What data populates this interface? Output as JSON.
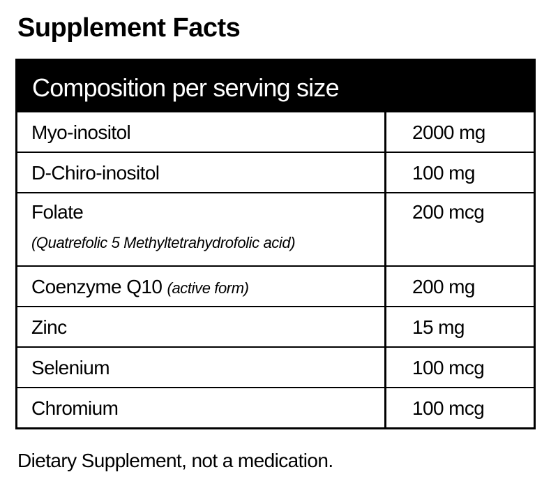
{
  "title": "Supplement Facts",
  "table": {
    "header": "Composition per serving size",
    "rows": [
      {
        "name": "Myo-inositol",
        "note": "",
        "amount": "2000 mg"
      },
      {
        "name": "D-Chiro-inositol",
        "note": "",
        "amount": "100 mg"
      },
      {
        "name": "Folate",
        "note": "(Quatrefolic 5 Methyltetrahydrofolic acid)",
        "amount": "200 mcg"
      },
      {
        "name": "Coenzyme Q10",
        "note": "(active form)",
        "amount": "200 mg"
      },
      {
        "name": "Zinc",
        "note": "",
        "amount": "15 mg"
      },
      {
        "name": "Selenium",
        "note": "",
        "amount": "100 mcg"
      },
      {
        "name": "Chromium",
        "note": "",
        "amount": "100 mcg"
      }
    ]
  },
  "footer": "Dietary Supplement, not a medication."
}
